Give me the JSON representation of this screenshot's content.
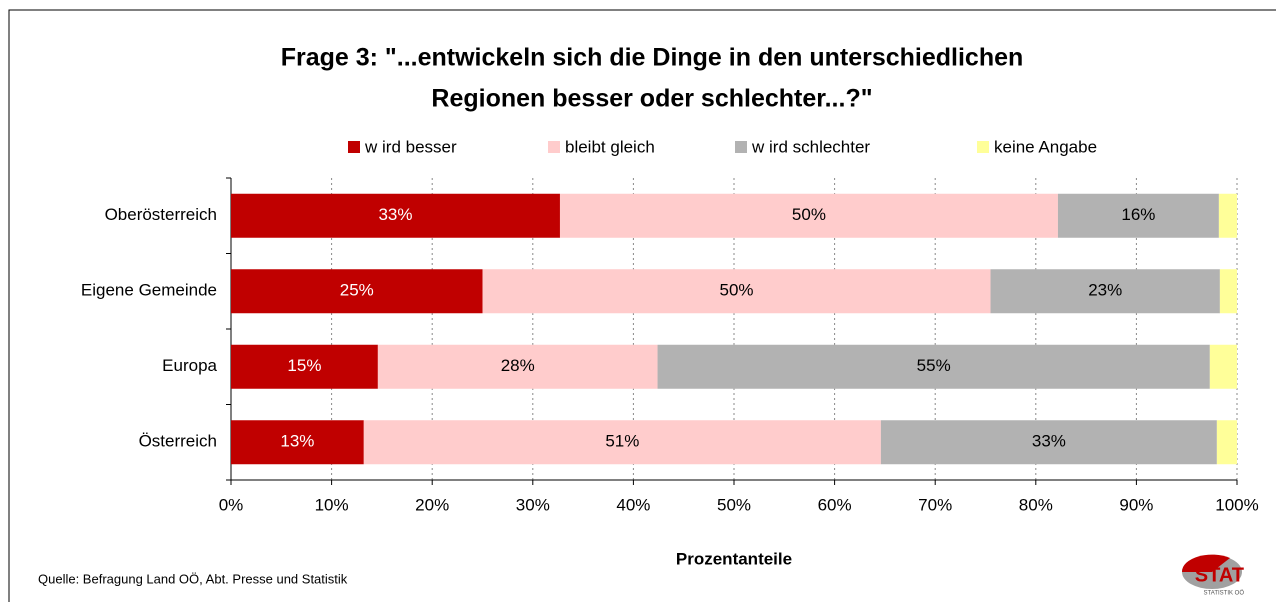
{
  "chart_data": {
    "type": "stacked-barh",
    "title": [
      "Frage 3: \"...entwickeln sich die Dinge in den unterschiedlichen",
      "Regionen besser oder schlechter...?\""
    ],
    "categories": [
      "Oberösterreich",
      "Eigene Gemeinde",
      "Europa",
      "Österreich"
    ],
    "series": [
      {
        "name": "w ird besser",
        "color": "#c00000",
        "label_color": "#ffffff",
        "values": [
          32.7,
          25.0,
          14.6,
          13.2
        ],
        "value_labels": [
          "33%",
          "25%",
          "15%",
          "13%"
        ]
      },
      {
        "name": "bleibt gleich",
        "color": "#ffcccc",
        "label_color": "#000000",
        "values": [
          49.5,
          50.5,
          27.8,
          51.4
        ],
        "value_labels": [
          "50%",
          "50%",
          "28%",
          "51%"
        ]
      },
      {
        "name": "w ird schlechter",
        "color": "#b2b2b2",
        "label_color": "#000000",
        "values": [
          16.0,
          22.8,
          54.9,
          33.4
        ],
        "value_labels": [
          "16%",
          "23%",
          "55%",
          "33%"
        ]
      },
      {
        "name": "keine Angabe",
        "color": "#ffff99",
        "values": [
          1.8,
          1.7,
          2.7,
          2.0
        ]
      }
    ],
    "xlabel": "Prozentanteile",
    "xlim": [
      0,
      100
    ],
    "xticks": [
      {
        "value": 0,
        "label": "0%"
      },
      {
        "value": 10,
        "label": "10%"
      },
      {
        "value": 20,
        "label": "20%"
      },
      {
        "value": 30,
        "label": "30%"
      },
      {
        "value": 40,
        "label": "40%"
      },
      {
        "value": 50,
        "label": "50%"
      },
      {
        "value": 60,
        "label": "60%"
      },
      {
        "value": 70,
        "label": "70%"
      },
      {
        "value": 80,
        "label": "80%"
      },
      {
        "value": 90,
        "label": "90%"
      },
      {
        "value": 100,
        "label": "100%"
      }
    ],
    "grid": true,
    "legend": "top",
    "source": "Quelle: Befragung Land OÖ, Abt. Presse und Statistik",
    "logo": {
      "text": "STAT",
      "subtext": "STATISTIK OÖ"
    }
  }
}
